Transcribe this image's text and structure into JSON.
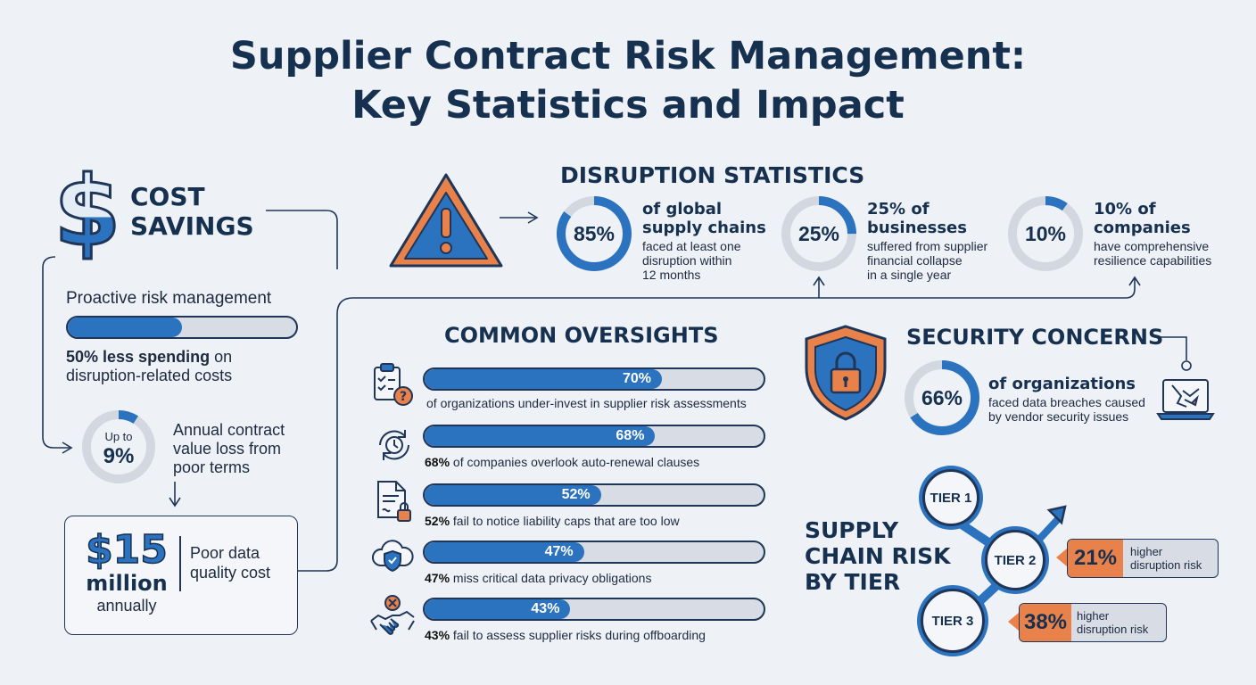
{
  "title": {
    "line1": "Supplier Contract Risk Management:",
    "line2": "Key Statistics and Impact"
  },
  "cost_savings": {
    "heading_line1": "COST",
    "heading_line2": "SAVINGS",
    "bar_label": "Proactive risk management",
    "bar_fraction": 0.5,
    "caption_bold": "50% less spending",
    "caption_rest_1": " on",
    "caption_rest_2": "disruption-related costs",
    "ring_top": "Up to",
    "ring_value": "9%",
    "ring_fraction": 0.09,
    "ring_caption": [
      "Annual contract",
      "value loss from",
      "poor terms"
    ],
    "big_amount": "$15",
    "big_unit": "million",
    "big_period": "annually",
    "big_caption": [
      "Poor data",
      "quality cost"
    ]
  },
  "disruption": {
    "heading": "DISRUPTION STATISTICS",
    "stats": [
      {
        "value": "85%",
        "fraction": 0.85,
        "bold": [
          "of global",
          "supply chains"
        ],
        "text": [
          "faced at least one",
          "disruption within",
          "12 months"
        ]
      },
      {
        "value": "25%",
        "fraction": 0.25,
        "bold": [
          "25% of",
          "businesses"
        ],
        "text": [
          "suffered from supplier",
          "financial collapse",
          "in a single year"
        ]
      },
      {
        "value": "10%",
        "fraction": 0.1,
        "bold": [
          "10% of",
          "companies"
        ],
        "text": [
          "have comprehensive",
          "resilience capabilities"
        ]
      }
    ]
  },
  "oversights": {
    "heading": "COMMON OVERSIGHTS",
    "items": [
      {
        "value": "70%",
        "fraction": 0.7,
        "icon": "checklist-question-icon",
        "bold": "",
        "text": "of organizations under-invest in supplier risk assessments"
      },
      {
        "value": "68%",
        "fraction": 0.68,
        "icon": "clock-renewal-icon",
        "bold": "68%",
        "text": " of companies overlook auto-renewal clauses"
      },
      {
        "value": "52%",
        "fraction": 0.52,
        "icon": "document-lock-icon",
        "bold": "52%",
        "text": " fail to notice liability caps that are too low"
      },
      {
        "value": "47%",
        "fraction": 0.47,
        "icon": "cloud-shield-icon",
        "bold": "47%",
        "text": " miss critical data privacy obligations"
      },
      {
        "value": "43%",
        "fraction": 0.43,
        "icon": "handshake-x-icon",
        "bold": "43%",
        "text": " fail to assess supplier risks during offboarding"
      }
    ]
  },
  "security": {
    "heading": "SECURITY CONCERNS",
    "value": "66%",
    "fraction": 0.66,
    "bold": "of organizations",
    "text": [
      "faced data breaches caused",
      "by vendor security issues"
    ]
  },
  "tiers": {
    "heading": [
      "SUPPLY",
      "CHAIN RISK",
      "BY TIER"
    ],
    "tier1": "TIER 1",
    "tier2": "TIER 2",
    "tier3": "TIER 3",
    "tier2_value": "21%",
    "tier2_text": [
      "higher",
      "disruption risk"
    ],
    "tier3_value": "38%",
    "tier3_text": [
      "higher",
      "disruption risk"
    ]
  },
  "colors": {
    "navy": "#16304f",
    "blue": "#2b72bf",
    "orange": "#e9814a",
    "track": "#d8dde5"
  }
}
